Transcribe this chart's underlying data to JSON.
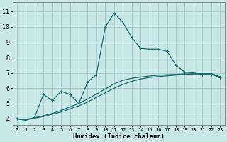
{
  "xlabel": "Humidex (Indice chaleur)",
  "x_ticks": [
    0,
    1,
    2,
    3,
    4,
    5,
    6,
    7,
    8,
    9,
    10,
    11,
    12,
    13,
    14,
    15,
    16,
    17,
    18,
    19,
    20,
    21,
    22,
    23
  ],
  "y_ticks": [
    4,
    5,
    6,
    7,
    8,
    9,
    10,
    11
  ],
  "xlim": [
    -0.5,
    23.5
  ],
  "ylim": [
    3.6,
    11.6
  ],
  "bg_color": "#c8e8e8",
  "grid_color": "#aacccc",
  "line_color": "#1a6b6b",
  "line1_x": [
    0,
    1,
    2,
    3,
    4,
    5,
    6,
    7,
    8,
    9,
    10,
    11,
    12,
    13,
    14,
    15,
    16,
    17,
    18,
    19,
    20,
    21,
    22,
    23
  ],
  "line1_y": [
    4.0,
    3.9,
    4.1,
    5.6,
    5.2,
    5.8,
    5.6,
    5.0,
    6.4,
    6.9,
    10.0,
    10.9,
    10.3,
    9.3,
    8.6,
    8.55,
    8.55,
    8.4,
    7.5,
    7.05,
    7.0,
    6.9,
    6.9,
    6.7
  ],
  "line2_x": [
    0,
    1,
    2,
    3,
    4,
    5,
    6,
    7,
    8,
    9,
    10,
    11,
    12,
    13,
    14,
    15,
    16,
    17,
    18,
    19,
    20,
    21,
    22,
    23
  ],
  "line2_y": [
    4.0,
    3.95,
    4.05,
    4.15,
    4.3,
    4.45,
    4.65,
    4.85,
    5.1,
    5.4,
    5.7,
    6.0,
    6.25,
    6.45,
    6.6,
    6.7,
    6.76,
    6.81,
    6.86,
    6.9,
    6.93,
    6.95,
    6.95,
    6.75
  ],
  "line3_x": [
    0,
    1,
    2,
    3,
    4,
    5,
    6,
    7,
    8,
    9,
    10,
    11,
    12,
    13,
    14,
    15,
    16,
    17,
    18,
    19,
    20,
    21,
    22,
    23
  ],
  "line3_y": [
    4.0,
    3.97,
    4.07,
    4.2,
    4.35,
    4.55,
    4.78,
    5.0,
    5.3,
    5.62,
    5.95,
    6.28,
    6.52,
    6.65,
    6.73,
    6.8,
    6.85,
    6.88,
    6.91,
    6.93,
    6.95,
    6.95,
    6.95,
    6.75
  ]
}
